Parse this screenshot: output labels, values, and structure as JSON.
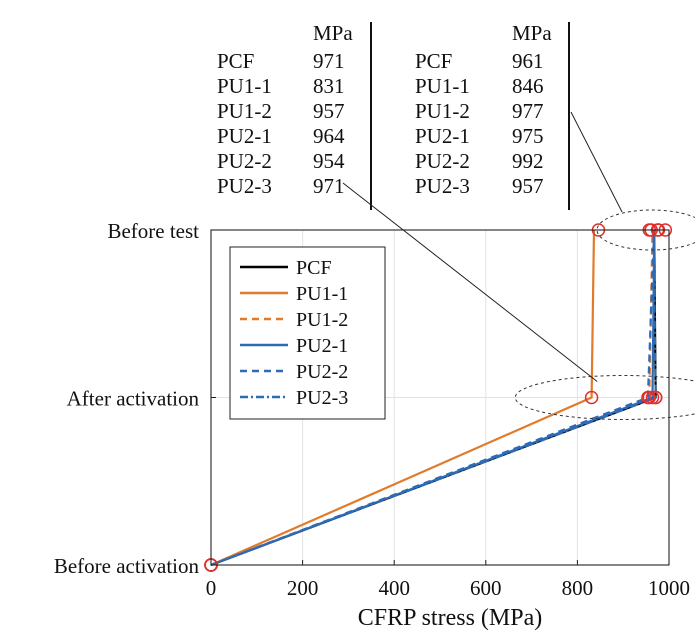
{
  "chart_data": {
    "type": "line",
    "xlabel": "CFRP stress (MPa)",
    "xlim": [
      0,
      1000
    ],
    "x_ticks": [
      0,
      200,
      400,
      600,
      800,
      1000
    ],
    "y_categories": [
      "Before activation",
      "After activation",
      "Before test"
    ],
    "grid": true,
    "legend_position": "inside-top-right",
    "series": [
      {
        "name": "PCF",
        "color": "#000000",
        "dash": "solid",
        "x": [
          0,
          971,
          961
        ]
      },
      {
        "name": "PU1-1",
        "color": "#E07B2C",
        "dash": "solid",
        "x": [
          0,
          831,
          846
        ]
      },
      {
        "name": "PU1-2",
        "color": "#E07B2C",
        "dash": "dashed",
        "x": [
          0,
          957,
          977
        ]
      },
      {
        "name": "PU2-1",
        "color": "#2E6BB5",
        "dash": "solid",
        "x": [
          0,
          964,
          975
        ]
      },
      {
        "name": "PU2-2",
        "color": "#2E6BB5",
        "dash": "dashed",
        "x": [
          0,
          954,
          992
        ]
      },
      {
        "name": "PU2-3",
        "color": "#2E6BB5",
        "dash": "dashdot",
        "x": [
          0,
          971,
          957
        ]
      }
    ],
    "marker_color": "#E0302C",
    "annotation_tables": [
      {
        "header": "MPa",
        "refers_to": "After activation",
        "rows": [
          {
            "label": "PCF",
            "value": "971"
          },
          {
            "label": "PU1-1",
            "value": "831"
          },
          {
            "label": "PU1-2",
            "value": "957"
          },
          {
            "label": "PU2-1",
            "value": "964"
          },
          {
            "label": "PU2-2",
            "value": "954"
          },
          {
            "label": "PU2-3",
            "value": "971"
          }
        ]
      },
      {
        "header": "MPa",
        "refers_to": "Before test",
        "rows": [
          {
            "label": "PCF",
            "value": "961"
          },
          {
            "label": "PU1-1",
            "value": "846"
          },
          {
            "label": "PU1-2",
            "value": "977"
          },
          {
            "label": "PU2-1",
            "value": "975"
          },
          {
            "label": "PU2-2",
            "value": "992"
          },
          {
            "label": "PU2-3",
            "value": "957"
          }
        ]
      }
    ]
  }
}
